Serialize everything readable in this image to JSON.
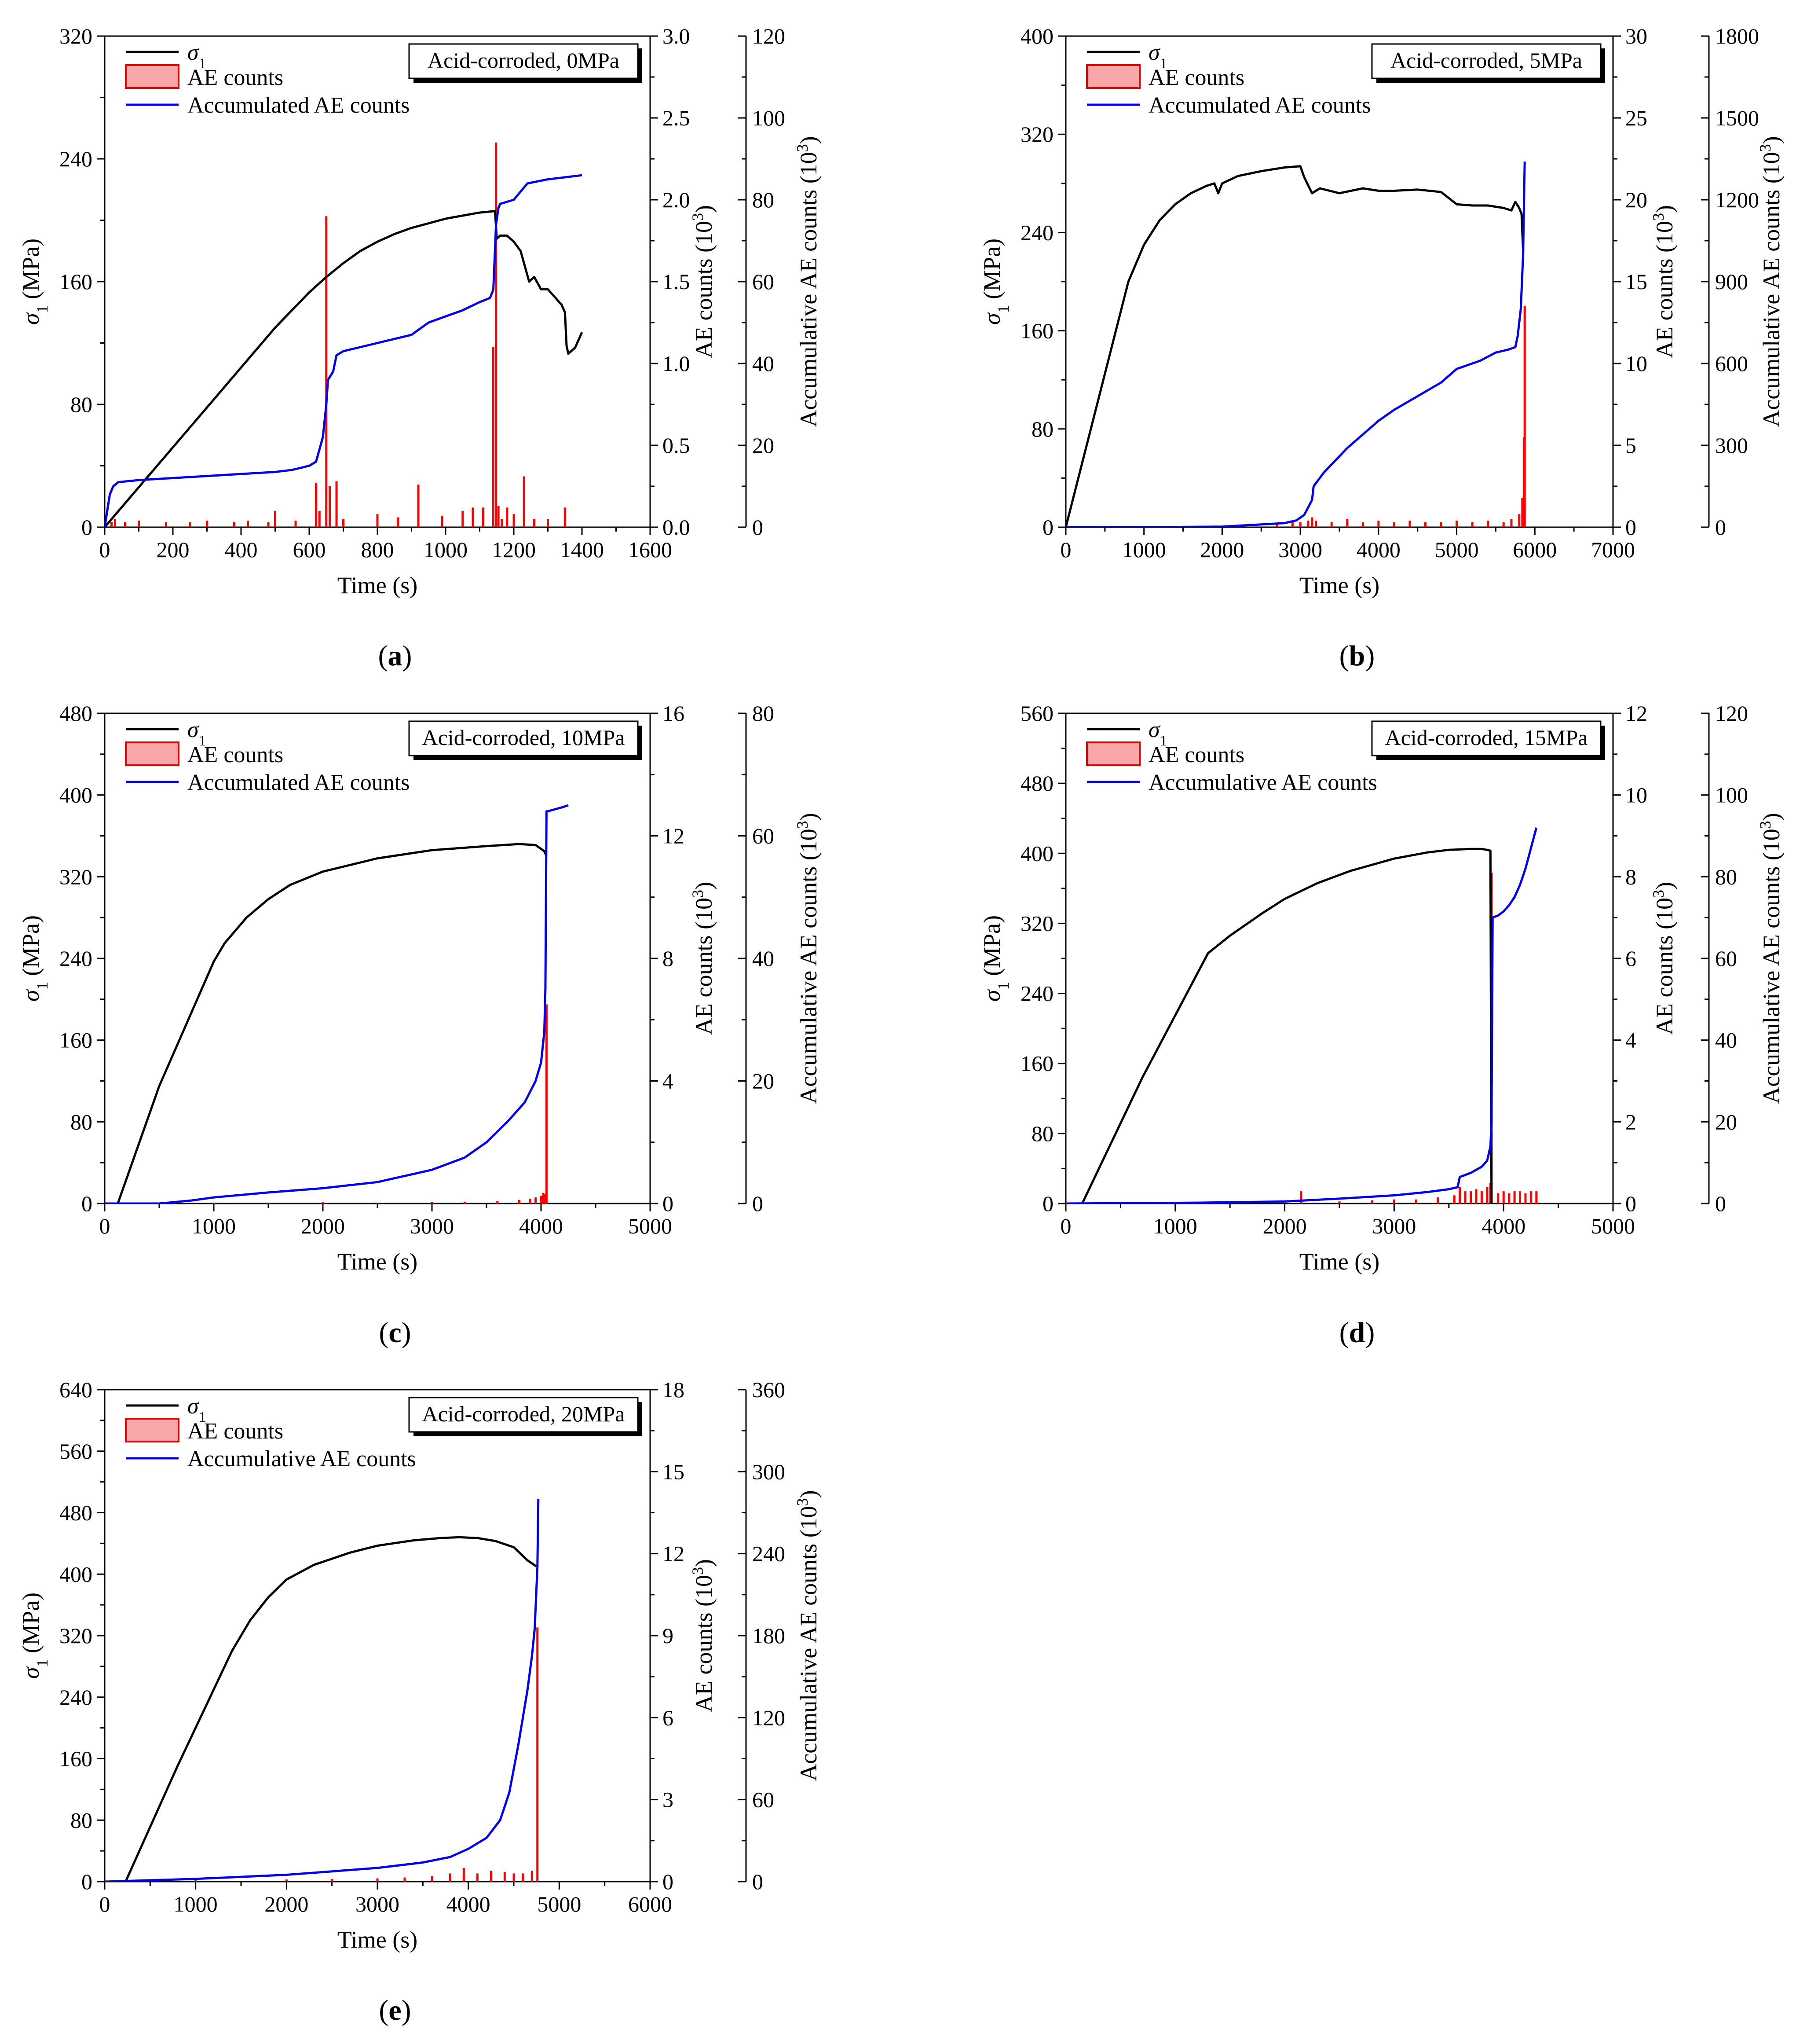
{
  "chart_data": [
    {
      "type": "line",
      "panel_label": "a",
      "title": "Acid-corroded, 0MPa",
      "xlabel": "Time (s)",
      "ylabel": "σ1 (MPa)",
      "y2label": "AE counts (10³)",
      "y3label": "Accumulative AE counts (10³)",
      "xlim": [
        0,
        1600
      ],
      "xticks": [
        "0",
        "200",
        "400",
        "600",
        "800",
        "1000",
        "1200",
        "1400",
        "1600"
      ],
      "ylim": [
        0,
        320
      ],
      "yticks": [
        "0",
        "80",
        "160",
        "240",
        "320"
      ],
      "y2lim": [
        0,
        3.0
      ],
      "y2ticks": [
        "0.0",
        "0.5",
        "1.0",
        "1.5",
        "2.0",
        "2.5",
        "3.0"
      ],
      "y3lim": [
        0,
        120
      ],
      "y3ticks": [
        "0",
        "20",
        "40",
        "60",
        "80",
        "100",
        "120"
      ],
      "legend": [
        "σ1",
        "AE counts",
        "Accumulated AE counts"
      ],
      "series": [
        {
          "name": "σ1",
          "color": "#000000",
          "axis": "y",
          "x": [
            0,
            100,
            200,
            300,
            400,
            500,
            600,
            650,
            700,
            750,
            800,
            850,
            900,
            950,
            1000,
            1050,
            1100,
            1145,
            1150,
            1160,
            1180,
            1200,
            1220,
            1230,
            1245,
            1260,
            1280,
            1300,
            1320,
            1340,
            1350,
            1355,
            1360,
            1380,
            1400
          ],
          "y": [
            0,
            26,
            52,
            78,
            104,
            130,
            153,
            163,
            172,
            180,
            186,
            191,
            195,
            198,
            201,
            203,
            205,
            206,
            188,
            190,
            190,
            186,
            180,
            172,
            160,
            163,
            155,
            155,
            150,
            145,
            140,
            118,
            113,
            117,
            127
          ]
        },
        {
          "name": "Accumulated AE counts",
          "color": "#0000ee",
          "axis": "y3",
          "x": [
            0,
            15,
            25,
            40,
            100,
            200,
            300,
            400,
            500,
            550,
            600,
            620,
            640,
            650,
            655,
            670,
            680,
            700,
            800,
            900,
            950,
            1000,
            1050,
            1100,
            1130,
            1140,
            1148,
            1155,
            1160,
            1200,
            1220,
            1240,
            1300,
            1350,
            1400
          ],
          "y": [
            0,
            8,
            10,
            11,
            11.5,
            12,
            12.5,
            13,
            13.5,
            14,
            15,
            16,
            22,
            30,
            36,
            38,
            42,
            43,
            45,
            47,
            50,
            51.5,
            53,
            55,
            56,
            58,
            74,
            78,
            79,
            80,
            82,
            84,
            85,
            85.5,
            86
          ]
        },
        {
          "name": "AE counts",
          "color": "#ff0000",
          "axis": "y2",
          "kind": "spikes",
          "x": [
            20,
            30,
            60,
            100,
            180,
            250,
            300,
            380,
            420,
            480,
            500,
            560,
            620,
            630,
            650,
            660,
            680,
            700,
            800,
            860,
            920,
            990,
            1050,
            1080,
            1110,
            1140,
            1148,
            1155,
            1165,
            1180,
            1200,
            1230,
            1260,
            1300,
            1350
          ],
          "y": [
            0.03,
            0.05,
            0.03,
            0.04,
            0.03,
            0.03,
            0.04,
            0.03,
            0.04,
            0.03,
            0.1,
            0.04,
            0.27,
            0.1,
            1.9,
            0.25,
            0.28,
            0.05,
            0.08,
            0.06,
            0.26,
            0.07,
            0.1,
            0.12,
            0.12,
            1.1,
            2.35,
            0.13,
            0.05,
            0.12,
            0.08,
            0.31,
            0.05,
            0.05,
            0.12
          ]
        }
      ]
    },
    {
      "type": "line",
      "panel_label": "b",
      "title": "Acid-corroded, 5MPa",
      "xlabel": "Time (s)",
      "ylabel": "σ1 (MPa)",
      "y2label": "AE counts (10³)",
      "y3label": "Accumulative AE counts (10³)",
      "xlim": [
        0,
        7000
      ],
      "xticks": [
        "0",
        "1000",
        "2000",
        "3000",
        "4000",
        "5000",
        "6000",
        "7000"
      ],
      "ylim": [
        0,
        400
      ],
      "yticks": [
        "0",
        "80",
        "160",
        "240",
        "320",
        "400"
      ],
      "y2lim": [
        0,
        30
      ],
      "y2ticks": [
        "0",
        "5",
        "10",
        "15",
        "20",
        "25",
        "30"
      ],
      "y3lim": [
        0,
        1800
      ],
      "y3ticks": [
        "0",
        "300",
        "600",
        "900",
        "1200",
        "1500",
        "1800"
      ],
      "legend": [
        "σ1",
        "AE counts",
        "Accumulated AE counts"
      ],
      "series": [
        {
          "name": "σ1",
          "color": "#000000",
          "axis": "y",
          "x": [
            0,
            400,
            800,
            1000,
            1200,
            1400,
            1600,
            1800,
            1900,
            1950,
            2000,
            2200,
            2500,
            2800,
            3000,
            3050,
            3150,
            3250,
            3500,
            3800,
            4000,
            4200,
            4500,
            4800,
            5000,
            5200,
            5400,
            5600,
            5700,
            5750,
            5800,
            5830,
            5850
          ],
          "y": [
            0,
            100,
            200,
            230,
            250,
            263,
            272,
            278,
            280,
            272,
            280,
            286,
            290,
            293,
            294,
            285,
            272,
            276,
            272,
            276,
            274,
            274,
            275,
            273,
            263,
            262,
            262,
            260,
            258,
            265,
            260,
            255,
            225
          ]
        },
        {
          "name": "Accumulated AE counts",
          "color": "#0000ee",
          "axis": "y3",
          "x": [
            0,
            1000,
            2000,
            2800,
            2950,
            3050,
            3150,
            3170,
            3300,
            3600,
            4000,
            4200,
            4500,
            4800,
            5000,
            5300,
            5500,
            5650,
            5750,
            5780,
            5820,
            5850,
            5870
          ],
          "y": [
            0,
            0,
            2,
            15,
            25,
            45,
            100,
            150,
            200,
            290,
            390,
            430,
            480,
            530,
            580,
            610,
            640,
            650,
            660,
            700,
            800,
            1000,
            1340
          ]
        },
        {
          "name": "AE counts",
          "color": "#ff0000",
          "axis": "y2",
          "kind": "spikes",
          "x": [
            2700,
            2900,
            3000,
            3100,
            3150,
            3200,
            3400,
            3600,
            3800,
            4000,
            4200,
            4400,
            4600,
            4800,
            5000,
            5200,
            5400,
            5600,
            5700,
            5800,
            5840,
            5860,
            5870
          ],
          "y": [
            0.2,
            0.3,
            0.3,
            0.4,
            0.6,
            0.4,
            0.3,
            0.5,
            0.3,
            0.4,
            0.3,
            0.4,
            0.3,
            0.3,
            0.4,
            0.3,
            0.4,
            0.3,
            0.5,
            0.8,
            1.8,
            5.5,
            13.5
          ]
        }
      ]
    },
    {
      "type": "line",
      "panel_label": "c",
      "title": "Acid-corroded, 10MPa",
      "xlabel": "Time (s)",
      "ylabel": "σ1 (MPa)",
      "y2label": "AE counts (10³)",
      "y3label": "Accumulative AE counts (10³)",
      "xlim": [
        0,
        5000
      ],
      "xticks": [
        "0",
        "1000",
        "2000",
        "3000",
        "4000",
        "5000"
      ],
      "ylim": [
        0,
        480
      ],
      "yticks": [
        "0",
        "80",
        "160",
        "240",
        "320",
        "400",
        "480"
      ],
      "y2lim": [
        0,
        16
      ],
      "y2ticks": [
        "0",
        "4",
        "8",
        "12",
        "16"
      ],
      "y3lim": [
        0,
        80
      ],
      "y3ticks": [
        "0",
        "20",
        "40",
        "60",
        "80"
      ],
      "legend": [
        "σ1",
        "AE counts",
        "Accumulated AE counts"
      ],
      "series": [
        {
          "name": "σ1",
          "color": "#000000",
          "axis": "y",
          "x": [
            120,
            500,
            1000,
            1100,
            1300,
            1500,
            1700,
            2000,
            2500,
            3000,
            3500,
            3800,
            3950,
            4030,
            4050
          ],
          "y": [
            0,
            115,
            237,
            255,
            280,
            298,
            312,
            325,
            338,
            346,
            350,
            352,
            351,
            345,
            340
          ]
        },
        {
          "name": "Accumulated AE counts",
          "color": "#0000ee",
          "axis": "y3",
          "x": [
            0,
            500,
            800,
            1000,
            1500,
            2000,
            2500,
            3000,
            3300,
            3500,
            3700,
            3850,
            3950,
            4000,
            4030,
            4040,
            4050,
            4060,
            4100,
            4200,
            4250
          ],
          "y": [
            0,
            0,
            0.5,
            1,
            1.8,
            2.5,
            3.5,
            5.5,
            7.5,
            10,
            13.5,
            16.5,
            20,
            23,
            28,
            35,
            64,
            64,
            64.2,
            64.7,
            65
          ]
        },
        {
          "name": "AE counts",
          "color": "#ff0000",
          "axis": "y2",
          "kind": "spikes",
          "x": [
            1000,
            1500,
            2000,
            2500,
            3000,
            3300,
            3600,
            3800,
            3900,
            3950,
            4000,
            4020,
            4040,
            4050
          ],
          "y": [
            0.03,
            0.03,
            0.04,
            0.03,
            0.05,
            0.06,
            0.08,
            0.12,
            0.15,
            0.2,
            0.25,
            0.35,
            0.3,
            6.5
          ]
        }
      ]
    },
    {
      "type": "line",
      "panel_label": "d",
      "title": "Acid-corroded, 15MPa",
      "xlabel": "Time (s)",
      "ylabel": "σ1 (MPa)",
      "y2label": "AE counts (10³)",
      "y3label": "Accumulative AE counts (10³)",
      "xlim": [
        0,
        5000
      ],
      "xticks": [
        "0",
        "1000",
        "2000",
        "3000",
        "4000",
        "5000"
      ],
      "ylim": [
        0,
        560
      ],
      "yticks": [
        "0",
        "80",
        "160",
        "240",
        "320",
        "400",
        "480",
        "560"
      ],
      "y2lim": [
        0,
        12
      ],
      "y2ticks": [
        "0",
        "2",
        "4",
        "6",
        "8",
        "10",
        "12"
      ],
      "y3lim": [
        0,
        120
      ],
      "y3ticks": [
        "0",
        "20",
        "40",
        "60",
        "80",
        "100",
        "120"
      ],
      "legend": [
        "σ1",
        "AE counts",
        "Accumulative AE counts"
      ],
      "series": [
        {
          "name": "σ1",
          "color": "#000000",
          "axis": "y",
          "x": [
            150,
            700,
            1300,
            1500,
            1800,
            2000,
            2300,
            2600,
            3000,
            3300,
            3500,
            3700,
            3800,
            3850,
            3880,
            3890
          ],
          "y": [
            0,
            144,
            286,
            306,
            332,
            348,
            366,
            380,
            394,
            401,
            404,
            405,
            405,
            404,
            403,
            0
          ]
        },
        {
          "name": "Accumulative AE counts",
          "color": "#0000ee",
          "axis": "y3",
          "x": [
            0,
            1200,
            2000,
            2500,
            3000,
            3300,
            3500,
            3580,
            3600,
            3700,
            3800,
            3850,
            3880,
            3890,
            3900,
            3950,
            4000,
            4050,
            4100,
            4150,
            4200,
            4250,
            4300
          ],
          "y": [
            0,
            0.2,
            0.5,
            1.2,
            2,
            2.8,
            3.5,
            4,
            6.5,
            7.5,
            9,
            10.5,
            14,
            20,
            70,
            70.5,
            71.5,
            73,
            75,
            78,
            82,
            87,
            92
          ]
        },
        {
          "name": "AE counts",
          "color": "#ff0000",
          "axis": "y2",
          "kind": "spikes",
          "x": [
            2150,
            2500,
            2800,
            3000,
            3200,
            3400,
            3550,
            3600,
            3650,
            3700,
            3750,
            3800,
            3850,
            3880,
            3890,
            3950,
            4000,
            4050,
            4100,
            4150,
            4200,
            4250,
            4300
          ],
          "y": [
            0.3,
            0.05,
            0.08,
            0.1,
            0.1,
            0.15,
            0.2,
            0.4,
            0.3,
            0.3,
            0.35,
            0.3,
            0.4,
            0.5,
            8.1,
            0.25,
            0.3,
            0.25,
            0.3,
            0.3,
            0.25,
            0.3,
            0.3
          ]
        }
      ]
    },
    {
      "type": "line",
      "panel_label": "e",
      "title": "Acid-corroded, 20MPa",
      "xlabel": "Time (s)",
      "ylabel": "σ1 (MPa)",
      "y2label": "AE counts (10³)",
      "y3label": "Accumulative AE counts (10³)",
      "xlim": [
        0,
        6000
      ],
      "xticks": [
        "0",
        "1000",
        "2000",
        "3000",
        "4000",
        "5000",
        "6000"
      ],
      "ylim": [
        0,
        640
      ],
      "yticks": [
        "0",
        "80",
        "160",
        "240",
        "320",
        "400",
        "480",
        "560",
        "640"
      ],
      "y2lim": [
        0,
        18
      ],
      "y2ticks": [
        "0",
        "3",
        "6",
        "9",
        "12",
        "15",
        "18"
      ],
      "y3lim": [
        0,
        360
      ],
      "y3ticks": [
        "0",
        "60",
        "120",
        "180",
        "240",
        "300",
        "360"
      ],
      "legend": [
        "σ1",
        "AE counts",
        "Accumulative AE counts"
      ],
      "series": [
        {
          "name": "σ1",
          "color": "#000000",
          "axis": "y",
          "x": [
            230,
            800,
            1400,
            1600,
            1800,
            2000,
            2300,
            2700,
            3000,
            3400,
            3700,
            3900,
            4100,
            4300,
            4500,
            4650,
            4750
          ],
          "y": [
            0,
            150,
            300,
            340,
            370,
            393,
            412,
            428,
            437,
            444,
            447,
            448,
            447,
            443,
            435,
            418,
            410
          ]
        },
        {
          "name": "Accumulative AE counts",
          "color": "#0000ee",
          "axis": "y3",
          "x": [
            0,
            1000,
            2000,
            3000,
            3500,
            3800,
            4000,
            4200,
            4350,
            4450,
            4550,
            4650,
            4700,
            4730,
            4760,
            4770
          ],
          "y": [
            0,
            2,
            5,
            10,
            14,
            18,
            24,
            32,
            45,
            65,
            100,
            140,
            165,
            185,
            230,
            280
          ]
        },
        {
          "name": "AE counts",
          "color": "#ff0000",
          "axis": "y2",
          "kind": "spikes",
          "x": [
            1000,
            2000,
            2500,
            3000,
            3300,
            3600,
            3800,
            3950,
            4100,
            4250,
            4400,
            4500,
            4600,
            4700,
            4760
          ],
          "y": [
            0.05,
            0.08,
            0.1,
            0.12,
            0.15,
            0.2,
            0.3,
            0.5,
            0.3,
            0.4,
            0.35,
            0.3,
            0.3,
            0.4,
            9.3
          ]
        }
      ]
    }
  ]
}
